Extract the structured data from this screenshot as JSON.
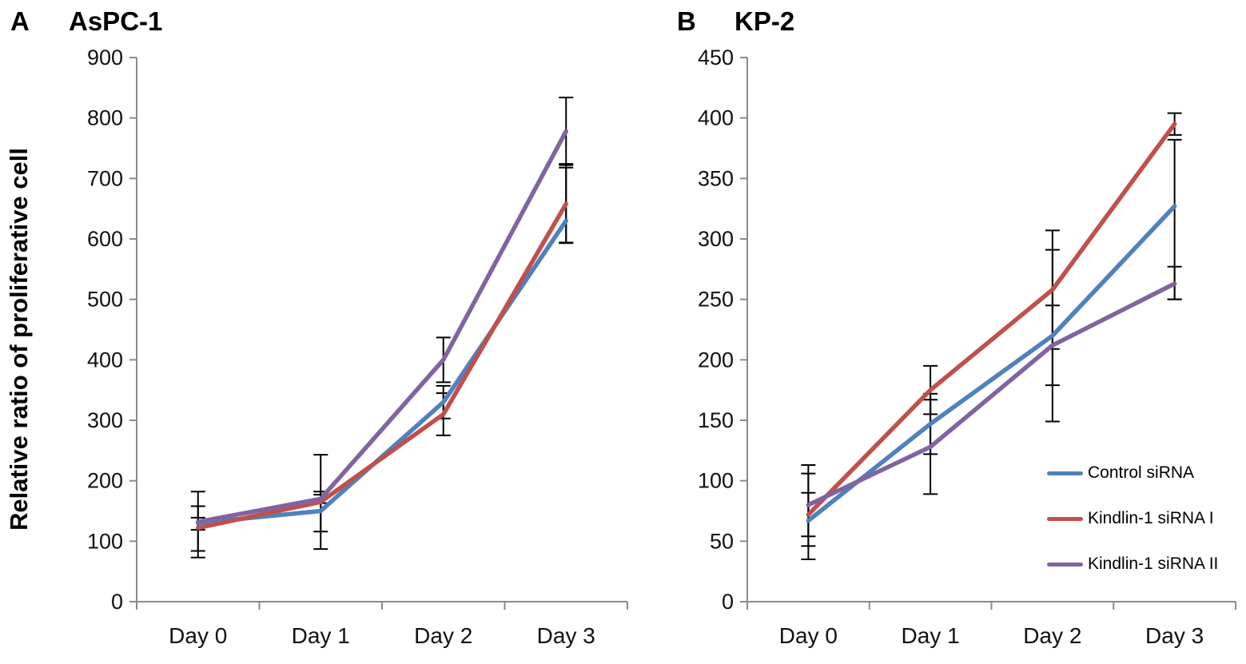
{
  "figure": {
    "panel_a_label": "A",
    "panel_a_title": "AsPC-1",
    "panel_b_label": "B",
    "panel_b_title": "KP-2",
    "y_axis_title": "Relative ratio of proliferative cell"
  },
  "legend": {
    "entries": [
      {
        "label": "Control siRNA",
        "color": "#4F81BD"
      },
      {
        "label": "Kindlin-1 siRNA I",
        "color": "#C0504D"
      },
      {
        "label": "Kindlin-1 siRNA II",
        "color": "#8064A2"
      }
    ]
  },
  "chart_data": [
    {
      "panel": "A",
      "type": "line",
      "title": "AsPC-1",
      "categories": [
        "Day 0",
        "Day 1",
        "Day 2",
        "Day 3"
      ],
      "xlabel": "",
      "ylabel": "Relative ratio of proliferative cell",
      "ylim": [
        0,
        900
      ],
      "ytick_step": 100,
      "grid": false,
      "error_bars": true,
      "series": [
        {
          "name": "Control siRNA",
          "color": "#4F81BD",
          "values": [
            130,
            150,
            330,
            630
          ],
          "err_lo": [
            73,
            116,
            303,
            594
          ],
          "err_hi": [
            182,
            182,
            357,
            718
          ]
        },
        {
          "name": "Kindlin-1 siRNA I",
          "color": "#C0504D",
          "values": [
            122,
            165,
            310,
            658
          ],
          "err_lo": [
            84,
            87,
            275,
            593
          ],
          "err_hi": [
            158,
            243,
            345,
            724
          ]
        },
        {
          "name": "Kindlin-1 siRNA II",
          "color": "#8064A2",
          "values": [
            132,
            170,
            400,
            778
          ],
          "err_lo": [
            119,
            163,
            363,
            722
          ],
          "err_hi": [
            139,
            177,
            437,
            834
          ]
        }
      ]
    },
    {
      "panel": "B",
      "type": "line",
      "title": "KP-2",
      "categories": [
        "Day 0",
        "Day 1",
        "Day 2",
        "Day 3"
      ],
      "xlabel": "",
      "ylabel": "Relative ratio of proliferative cell",
      "ylim": [
        0,
        450
      ],
      "ytick_step": 50,
      "grid": false,
      "error_bars": true,
      "legend_position": "inside-right",
      "series": [
        {
          "name": "Control siRNA",
          "color": "#4F81BD",
          "values": [
            67,
            147,
            220,
            327
          ],
          "err_lo": [
            46,
            122,
            149,
            250
          ],
          "err_hi": [
            90,
            172,
            291,
            382
          ]
        },
        {
          "name": "Kindlin-1 siRNA I",
          "color": "#C0504D",
          "values": [
            72,
            175,
            258,
            395
          ],
          "err_lo": [
            35,
            155,
            209,
            386
          ],
          "err_hi": [
            113,
            195,
            307,
            404
          ]
        },
        {
          "name": "Kindlin-1 siRNA II",
          "color": "#8064A2",
          "values": [
            80,
            128,
            212,
            263
          ],
          "err_lo": [
            54,
            89,
            179,
            250
          ],
          "err_hi": [
            106,
            167,
            245,
            277
          ]
        }
      ]
    }
  ]
}
